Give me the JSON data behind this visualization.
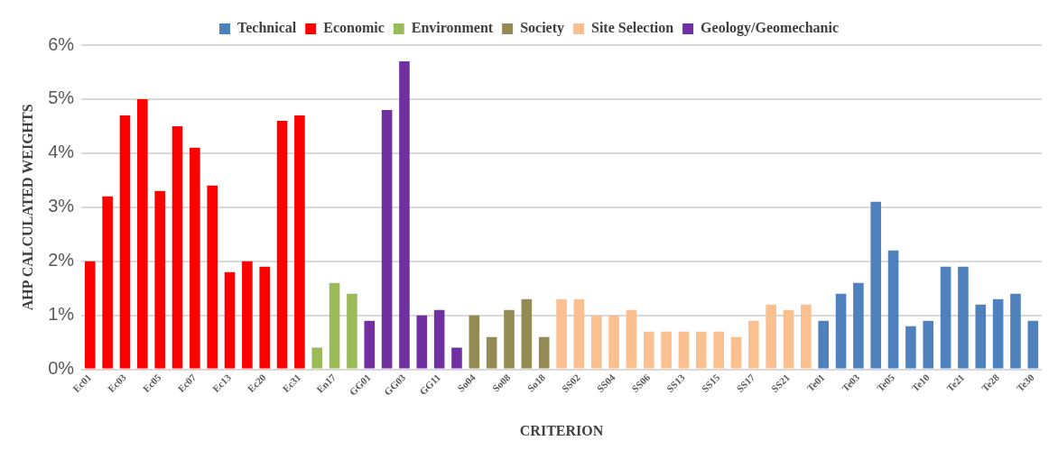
{
  "chart_data": {
    "type": "bar",
    "xlabel": "CRITERION",
    "ylabel": "AHP CALCULATED WEIGHTS",
    "categories": [
      "Ec01",
      null,
      "Ec03",
      null,
      "Ec05",
      null,
      "Ec07",
      null,
      "Ec13",
      null,
      "Ec20",
      null,
      "Ec31",
      null,
      "En17",
      null,
      "GG01",
      null,
      "GG03",
      null,
      "GG11",
      null,
      "So04",
      null,
      "So08",
      null,
      "So18",
      null,
      "SS02",
      null,
      "SS04",
      null,
      "SS06",
      null,
      "SS13",
      null,
      "SS15",
      null,
      "SS17",
      null,
      "SS21",
      null,
      "Te01",
      null,
      "Te03",
      null,
      "Te05",
      null,
      "Te10",
      null,
      "Te21",
      null,
      "Te28",
      null,
      "Te30"
    ],
    "series": [
      {
        "name": "Technical",
        "color": "#4f81bd",
        "values": [
          null,
          null,
          null,
          null,
          null,
          null,
          null,
          null,
          null,
          null,
          null,
          null,
          null,
          null,
          null,
          null,
          null,
          null,
          null,
          null,
          null,
          null,
          null,
          null,
          null,
          null,
          null,
          null,
          null,
          null,
          null,
          null,
          null,
          null,
          null,
          null,
          null,
          null,
          null,
          null,
          null,
          null,
          0.9,
          1.4,
          1.6,
          3.1,
          2.2,
          0.8,
          0.9,
          1.9,
          1.9,
          1.2,
          1.3,
          1.4,
          0.9
        ]
      },
      {
        "name": "Economic",
        "color": "#ff0000",
        "values": [
          2.0,
          3.2,
          4.7,
          5.0,
          3.3,
          4.5,
          4.1,
          3.4,
          1.8,
          2.0,
          1.9,
          4.6,
          4.7,
          null,
          null,
          null,
          null,
          null,
          null,
          null,
          null,
          null,
          null,
          null,
          null,
          null,
          null,
          null,
          null,
          null,
          null,
          null,
          null,
          null,
          null,
          null,
          null,
          null,
          null,
          null,
          null,
          null,
          null,
          null,
          null,
          null,
          null,
          null,
          null,
          null,
          null,
          null,
          null,
          null,
          null
        ]
      },
      {
        "name": "Environment",
        "color": "#9bbb59",
        "values": [
          null,
          null,
          null,
          null,
          null,
          null,
          null,
          null,
          null,
          null,
          null,
          null,
          null,
          0.4,
          1.6,
          1.4,
          null,
          null,
          null,
          null,
          null,
          null,
          null,
          null,
          null,
          null,
          null,
          null,
          null,
          null,
          null,
          null,
          null,
          null,
          null,
          null,
          null,
          null,
          null,
          null,
          null,
          null,
          null,
          null,
          null,
          null,
          null,
          null,
          null,
          null,
          null,
          null,
          null,
          null,
          null
        ]
      },
      {
        "name": "Society",
        "color": "#948a54",
        "values": [
          null,
          null,
          null,
          null,
          null,
          null,
          null,
          null,
          null,
          null,
          null,
          null,
          null,
          null,
          null,
          null,
          null,
          null,
          null,
          null,
          null,
          null,
          1.0,
          0.6,
          1.1,
          1.3,
          0.6,
          null,
          null,
          null,
          null,
          null,
          null,
          null,
          null,
          null,
          null,
          null,
          null,
          null,
          null,
          null,
          null,
          null,
          null,
          null,
          null,
          null,
          null,
          null,
          null,
          null,
          null,
          null,
          null
        ]
      },
      {
        "name": "Site Selection",
        "color": "#fac090",
        "values": [
          null,
          null,
          null,
          null,
          null,
          null,
          null,
          null,
          null,
          null,
          null,
          null,
          null,
          null,
          null,
          null,
          null,
          null,
          null,
          null,
          null,
          null,
          null,
          null,
          null,
          null,
          null,
          1.3,
          1.3,
          1.0,
          1.0,
          1.1,
          0.7,
          0.7,
          0.7,
          0.7,
          0.7,
          0.6,
          0.9,
          1.2,
          1.1,
          1.2,
          null,
          null,
          null,
          null,
          null,
          null,
          null,
          null,
          null,
          null,
          null,
          null,
          null
        ]
      },
      {
        "name": "Geology/Geomechanic",
        "color": "#7030a0",
        "values": [
          null,
          null,
          null,
          null,
          null,
          null,
          null,
          null,
          null,
          null,
          null,
          null,
          null,
          null,
          null,
          null,
          0.9,
          4.8,
          5.7,
          1.0,
          1.1,
          0.4,
          null,
          null,
          null,
          null,
          null,
          null,
          null,
          null,
          null,
          null,
          null,
          null,
          null,
          null,
          null,
          null,
          null,
          null,
          null,
          null,
          null,
          null,
          null,
          null,
          null,
          null,
          null,
          null,
          null,
          null,
          null,
          null,
          null
        ]
      }
    ],
    "ylim": [
      0,
      6
    ],
    "yticks": [
      {
        "value": 0,
        "label": "0%"
      },
      {
        "value": 1,
        "label": "1%"
      },
      {
        "value": 2,
        "label": "2%"
      },
      {
        "value": 3,
        "label": "3%"
      },
      {
        "value": 4,
        "label": "4%"
      },
      {
        "value": 5,
        "label": "5%"
      },
      {
        "value": 6,
        "label": "6%"
      }
    ],
    "grid": "y",
    "legend": "top"
  }
}
